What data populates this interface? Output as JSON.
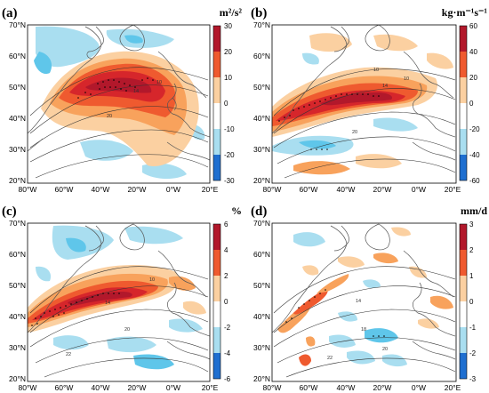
{
  "figure": {
    "panels": [
      {
        "id": "a",
        "label": "(a)",
        "unit": "m²/s²",
        "colorbar_ticks": [
          "30",
          "20",
          "10",
          "0",
          "-10",
          "-20",
          "-30"
        ],
        "contour_labels": [
          "20",
          "14",
          "10"
        ]
      },
      {
        "id": "b",
        "label": "(b)",
        "unit": "kg·m⁻¹s⁻¹",
        "colorbar_ticks": [
          "60",
          "40",
          "20",
          "0",
          "-20",
          "-40",
          "-60"
        ],
        "contour_labels": [
          "14",
          "10",
          "20",
          "10"
        ]
      },
      {
        "id": "c",
        "label": "(c)",
        "unit": "%",
        "colorbar_ticks": [
          "6",
          "4",
          "2",
          "0",
          "-2",
          "-4",
          "-6"
        ],
        "contour_labels": [
          "14",
          "22",
          "20",
          "10"
        ]
      },
      {
        "id": "d",
        "label": "(d)",
        "unit": "mm/d",
        "colorbar_ticks": [
          "3",
          "2",
          "1",
          "0",
          "-1",
          "-2",
          "-3"
        ],
        "contour_labels": [
          "14",
          "18",
          "22",
          "20"
        ]
      }
    ],
    "lat_ticks": [
      "70°N",
      "60°N",
      "50°N",
      "40°N",
      "30°N",
      "20°N"
    ],
    "lon_ticks": [
      "80°W",
      "60°W",
      "40°W",
      "20°W",
      "0°W",
      "20°E"
    ],
    "colors": {
      "dark_red": "#b2182b",
      "red": "#d6262b",
      "orange_red": "#ef5a2f",
      "orange": "#f8a25c",
      "light_orange": "#fbd0a1",
      "light_blue": "#a9def0",
      "cyan": "#5fc6ea",
      "blue": "#2b8fd9",
      "dark_blue": "#0b4fb8"
    }
  }
}
